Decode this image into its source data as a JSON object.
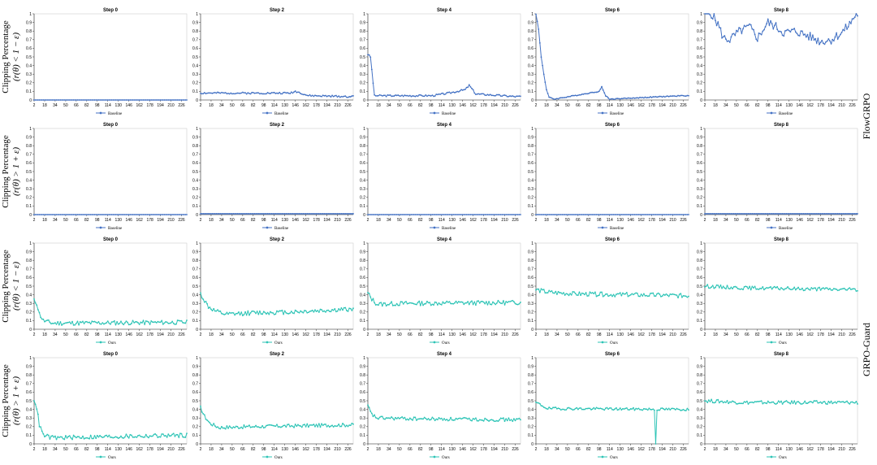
{
  "row_ylabels": [
    {
      "line1": "Clipping Percentage",
      "line2": "(r(θ) < 1 − ε)"
    },
    {
      "line1": "Clipping Percentage",
      "line2": "(r(θ) > 1 + ε)"
    },
    {
      "line1": "Clipping Percentage",
      "line2": "(r(θ) < 1 − ε)"
    },
    {
      "line1": "Clipping Percentage",
      "line2": "(r(θ) > 1 + ε)"
    }
  ],
  "group_labels": {
    "top": "FlowGRPO",
    "bottom": "GRPO-Guard"
  },
  "colors": {
    "baseline": "#4472C4",
    "ours": "#2EC4B6",
    "axis": "#333333"
  },
  "x_ticks": [
    "2",
    "18",
    "34",
    "50",
    "66",
    "82",
    "98",
    "114",
    "130",
    "146",
    "162",
    "178",
    "194",
    "210",
    "226"
  ],
  "y_ticks": [
    "0",
    "0.1",
    "0.2",
    "0.3",
    "0.4",
    "0.5",
    "0.6",
    "0.7",
    "0.8",
    "0.9",
    "1"
  ],
  "chart_data": [
    {
      "type": "line",
      "row": 0,
      "col": 0,
      "title": "Step 0",
      "series": [
        {
          "name": "Baseline",
          "shape": "flat",
          "level": 0.0,
          "noise": 0.0,
          "seed": 1
        }
      ]
    },
    {
      "type": "line",
      "row": 0,
      "col": 1,
      "title": "Step 2",
      "series": [
        {
          "name": "Baseline",
          "shape": "humps",
          "level": 0.01,
          "noise": 0.01,
          "seed": 2,
          "humps": [
            [
              2,
              0.08
            ],
            [
              138,
              0.08
            ],
            [
              146,
              0.1
            ],
            [
              155,
              0.08
            ],
            [
              165,
              0.05
            ],
            [
              226,
              0.04
            ]
          ]
        }
      ]
    },
    {
      "type": "line",
      "row": 0,
      "col": 2,
      "title": "Step 4",
      "series": [
        {
          "name": "Baseline",
          "shape": "humps",
          "level": 0.01,
          "noise": 0.01,
          "seed": 3,
          "humps": [
            [
              2,
              0.53
            ],
            [
              6,
              0.5
            ],
            [
              12,
              0.05
            ],
            [
              100,
              0.05
            ],
            [
              125,
              0.08
            ],
            [
              150,
              0.12
            ],
            [
              156,
              0.17
            ],
            [
              166,
              0.07
            ],
            [
              226,
              0.04
            ]
          ]
        }
      ]
    },
    {
      "type": "line",
      "row": 0,
      "col": 3,
      "title": "Step 6",
      "series": [
        {
          "name": "Baseline",
          "shape": "humps",
          "level": 0.01,
          "noise": 0.005,
          "seed": 4,
          "humps": [
            [
              2,
              1.0
            ],
            [
              6,
              0.82
            ],
            [
              10,
              0.5
            ],
            [
              14,
              0.3
            ],
            [
              18,
              0.12
            ],
            [
              22,
              0.03
            ],
            [
              30,
              0.01
            ],
            [
              98,
              0.1
            ],
            [
              102,
              0.15
            ],
            [
              108,
              0.05
            ],
            [
              114,
              0.01
            ],
            [
              226,
              0.05
            ]
          ]
        }
      ]
    },
    {
      "type": "line",
      "row": 0,
      "col": 4,
      "title": "Step 8",
      "series": [
        {
          "name": "Baseline",
          "shape": "humps",
          "level": 0.78,
          "noise": 0.05,
          "seed": 5,
          "humps": [
            [
              2,
              1.0
            ],
            [
              12,
              1.0
            ],
            [
              22,
              0.88
            ],
            [
              30,
              0.72
            ],
            [
              40,
              0.7
            ],
            [
              55,
              0.8
            ],
            [
              70,
              0.85
            ],
            [
              82,
              0.72
            ],
            [
              98,
              0.9
            ],
            [
              110,
              0.85
            ],
            [
              122,
              0.78
            ],
            [
              140,
              0.8
            ],
            [
              160,
              0.74
            ],
            [
              178,
              0.68
            ],
            [
              194,
              0.7
            ],
            [
              210,
              0.78
            ],
            [
              222,
              0.88
            ],
            [
              232,
              1.0
            ]
          ]
        }
      ]
    },
    {
      "type": "line",
      "row": 1,
      "col": 0,
      "title": "Step 0",
      "series": [
        {
          "name": "Baseline",
          "shape": "flat",
          "level": 0.0,
          "noise": 0.0,
          "seed": 6
        }
      ]
    },
    {
      "type": "line",
      "row": 1,
      "col": 1,
      "title": "Step 2",
      "series": [
        {
          "name": "Baseline",
          "shape": "flat",
          "level": 0.01,
          "noise": 0.0,
          "seed": 7
        }
      ]
    },
    {
      "type": "line",
      "row": 1,
      "col": 2,
      "title": "Step 4",
      "series": [
        {
          "name": "Baseline",
          "shape": "flat",
          "level": 0.0,
          "noise": 0.0,
          "seed": 8
        }
      ]
    },
    {
      "type": "line",
      "row": 1,
      "col": 3,
      "title": "Step 6",
      "series": [
        {
          "name": "Baseline",
          "shape": "flat",
          "level": 0.0,
          "noise": 0.0,
          "seed": 9
        }
      ]
    },
    {
      "type": "line",
      "row": 1,
      "col": 4,
      "title": "Step 8",
      "series": [
        {
          "name": "Baseline",
          "shape": "flat",
          "level": 0.01,
          "noise": 0.0,
          "seed": 10
        }
      ]
    },
    {
      "type": "line",
      "row": 2,
      "col": 0,
      "title": "Step 0",
      "series": [
        {
          "name": "Ours",
          "shape": "humps",
          "level": 0.07,
          "noise": 0.025,
          "seed": 11,
          "humps": [
            [
              2,
              0.33
            ],
            [
              6,
              0.3
            ],
            [
              10,
              0.18
            ],
            [
              16,
              0.1
            ],
            [
              30,
              0.07
            ],
            [
              226,
              0.08
            ]
          ]
        }
      ]
    },
    {
      "type": "line",
      "row": 2,
      "col": 1,
      "title": "Step 2",
      "series": [
        {
          "name": "Ours",
          "shape": "humps",
          "level": 0.2,
          "noise": 0.025,
          "seed": 12,
          "humps": [
            [
              2,
              0.41
            ],
            [
              8,
              0.33
            ],
            [
              14,
              0.26
            ],
            [
              24,
              0.21
            ],
            [
              40,
              0.17
            ],
            [
              80,
              0.19
            ],
            [
              140,
              0.2
            ],
            [
              226,
              0.23
            ]
          ]
        }
      ]
    },
    {
      "type": "line",
      "row": 2,
      "col": 2,
      "title": "Step 4",
      "series": [
        {
          "name": "Ours",
          "shape": "humps",
          "level": 0.3,
          "noise": 0.025,
          "seed": 13,
          "humps": [
            [
              2,
              0.42
            ],
            [
              8,
              0.35
            ],
            [
              16,
              0.29
            ],
            [
              60,
              0.3
            ],
            [
              226,
              0.31
            ]
          ]
        }
      ]
    },
    {
      "type": "line",
      "row": 2,
      "col": 3,
      "title": "Step 6",
      "series": [
        {
          "name": "Ours",
          "shape": "humps",
          "level": 0.41,
          "noise": 0.025,
          "seed": 14,
          "humps": [
            [
              2,
              0.46
            ],
            [
              20,
              0.43
            ],
            [
              60,
              0.41
            ],
            [
              226,
              0.39
            ]
          ]
        }
      ]
    },
    {
      "type": "line",
      "row": 2,
      "col": 4,
      "title": "Step 8",
      "series": [
        {
          "name": "Ours",
          "shape": "humps",
          "level": 0.47,
          "noise": 0.02,
          "seed": 15,
          "humps": [
            [
              2,
              0.5
            ],
            [
              60,
              0.48
            ],
            [
              226,
              0.46
            ]
          ]
        }
      ]
    },
    {
      "type": "line",
      "row": 3,
      "col": 0,
      "title": "Step 0",
      "series": [
        {
          "name": "Ours",
          "shape": "humps",
          "level": 0.07,
          "noise": 0.025,
          "seed": 16,
          "humps": [
            [
              2,
              0.52
            ],
            [
              6,
              0.42
            ],
            [
              10,
              0.22
            ],
            [
              16,
              0.1
            ],
            [
              30,
              0.07
            ],
            [
              226,
              0.1
            ]
          ]
        }
      ]
    },
    {
      "type": "line",
      "row": 3,
      "col": 1,
      "title": "Step 2",
      "series": [
        {
          "name": "Ours",
          "shape": "humps",
          "level": 0.2,
          "noise": 0.02,
          "seed": 17,
          "humps": [
            [
              2,
              0.42
            ],
            [
              8,
              0.32
            ],
            [
              16,
              0.24
            ],
            [
              30,
              0.19
            ],
            [
              80,
              0.2
            ],
            [
              226,
              0.22
            ]
          ]
        }
      ]
    },
    {
      "type": "line",
      "row": 3,
      "col": 2,
      "title": "Step 4",
      "series": [
        {
          "name": "Ours",
          "shape": "humps",
          "level": 0.29,
          "noise": 0.02,
          "seed": 18,
          "humps": [
            [
              2,
              0.44
            ],
            [
              8,
              0.34
            ],
            [
              16,
              0.3
            ],
            [
              80,
              0.29
            ],
            [
              226,
              0.28
            ]
          ]
        }
      ]
    },
    {
      "type": "line",
      "row": 3,
      "col": 3,
      "title": "Step 6",
      "series": [
        {
          "name": "Ours",
          "shape": "humps",
          "level": 0.4,
          "noise": 0.015,
          "seed": 19,
          "humps": [
            [
              2,
              0.48
            ],
            [
              20,
              0.41
            ],
            [
              226,
              0.4
            ]
          ],
          "dips": [
            [
              184,
              0.0
            ]
          ]
        }
      ]
    },
    {
      "type": "line",
      "row": 3,
      "col": 4,
      "title": "Step 8",
      "series": [
        {
          "name": "Ours",
          "shape": "humps",
          "level": 0.47,
          "noise": 0.02,
          "seed": 20,
          "humps": [
            [
              2,
              0.5
            ],
            [
              60,
              0.48
            ],
            [
              226,
              0.48
            ]
          ]
        }
      ]
    }
  ]
}
